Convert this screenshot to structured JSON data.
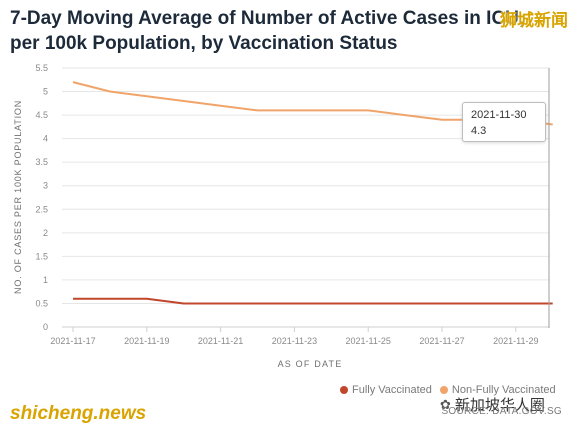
{
  "title": "7-Day Moving Average of Number of Active Cases in ICU, per 100k Population, by Vaccination Status",
  "watermarks": {
    "top_right": "狮城新闻",
    "bottom_left": "shicheng.news",
    "bottom_right": "新加坡华人圈"
  },
  "source": "SOURCE: DATA.GOV.SG",
  "tooltip": {
    "date": "2021-11-30",
    "value": "4.3"
  },
  "colors": {
    "fully": "#c0472b",
    "non_fully": "#f0a46a",
    "grid": "#e6e6e6",
    "axis_text": "#8a8a8a"
  },
  "chart_data": {
    "type": "line",
    "title": "7-Day Moving Average of Number of Active Cases in ICU, per 100k Population, by Vaccination Status",
    "xlabel": "AS OF DATE",
    "ylabel": "NO. OF CASES PER 100K POPULATION",
    "ylim": [
      0,
      5.5
    ],
    "y_ticks": [
      "0",
      "0.5",
      "1",
      "1.5",
      "2",
      "2.5",
      "3",
      "3.5",
      "4",
      "4.5",
      "5",
      "5.5"
    ],
    "x_tick_labels": [
      "2021-11-17",
      "2021-11-19",
      "2021-11-21",
      "2021-11-23",
      "2021-11-25",
      "2021-11-27",
      "2021-11-29"
    ],
    "x": [
      "2021-11-17",
      "2021-11-18",
      "2021-11-19",
      "2021-11-20",
      "2021-11-21",
      "2021-11-22",
      "2021-11-23",
      "2021-11-24",
      "2021-11-25",
      "2021-11-26",
      "2021-11-27",
      "2021-11-28",
      "2021-11-29",
      "2021-11-30"
    ],
    "series": [
      {
        "name": "Fully Vaccinated",
        "color": "#c0472b",
        "values": [
          0.6,
          0.6,
          0.6,
          0.5,
          0.5,
          0.5,
          0.5,
          0.5,
          0.5,
          0.5,
          0.5,
          0.5,
          0.5,
          0.5
        ]
      },
      {
        "name": "Non-Fully Vaccinated",
        "color": "#f0a46a",
        "values": [
          5.2,
          5.0,
          4.9,
          4.8,
          4.7,
          4.6,
          4.6,
          4.6,
          4.6,
          4.5,
          4.4,
          4.4,
          4.4,
          4.3
        ]
      }
    ],
    "grid": true,
    "legend_position": "bottom-right"
  }
}
